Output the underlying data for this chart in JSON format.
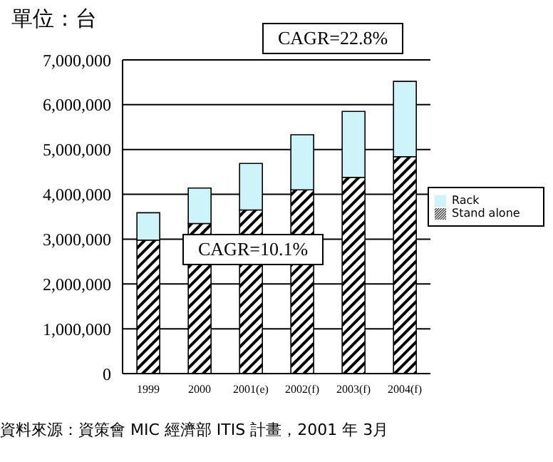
{
  "chart_data": {
    "type": "bar",
    "ylabel": "單位：台",
    "categories": [
      "1999",
      "2000",
      "2001(e)",
      "2002(f)",
      "2003(f)",
      "2004(f)"
    ],
    "series": [
      {
        "name": "Stand alone",
        "color": "#000000",
        "values": [
          2980000,
          3350000,
          3650000,
          4100000,
          4380000,
          4840000
        ]
      },
      {
        "name": "Rack",
        "color": "#ccf4fa",
        "values": [
          610000,
          790000,
          1040000,
          1230000,
          1470000,
          1680000
        ]
      }
    ],
    "stacked": true,
    "ylim": [
      0,
      7000000
    ],
    "yticks": [
      0,
      {
        "value": 1000000,
        "label": "1,000,000"
      },
      {
        "value": 2000000,
        "label": "2,000,000"
      },
      {
        "value": 3000000,
        "label": "3,000,000"
      },
      {
        "value": 4000000,
        "label": "4,000,000"
      },
      {
        "value": 5000000,
        "label": "5,000,000"
      },
      {
        "value": 6000000,
        "label": "6,000,000"
      },
      {
        "value": 7000000,
        "label": "7,000,000"
      }
    ],
    "grid": "y",
    "legend": "right",
    "annotations": [
      "CAGR=22.8%",
      "CAGR=10.1%",
      "資料來源：資策會 MIC 經濟部 ITIS 計畫，2001 年 3月"
    ]
  }
}
